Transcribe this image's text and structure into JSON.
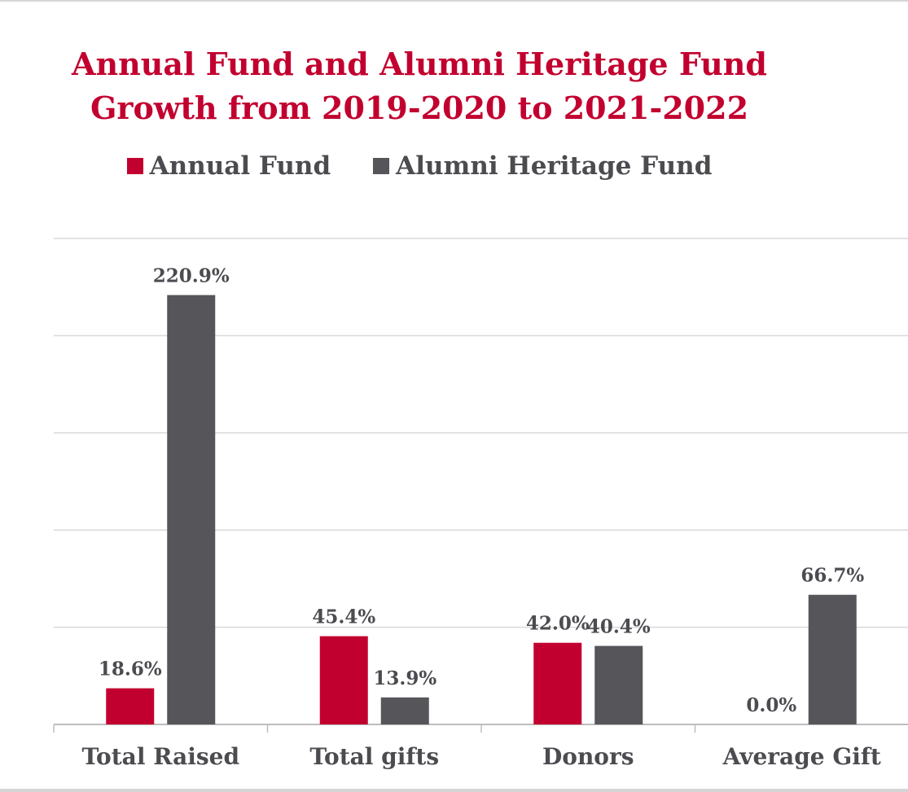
{
  "chart_data": {
    "type": "bar",
    "title": [
      "Annual Fund and Alumni Heritage Fund",
      "Growth from 2019-2020 to 2021-2022"
    ],
    "categories": [
      "Total Raised",
      "Total gifts",
      "Donors",
      "Average Gift"
    ],
    "series": [
      {
        "name": "Annual Fund",
        "color": "#c2002f",
        "values": [
          18.6,
          45.4,
          42.0,
          0.0
        ],
        "labels": [
          "18.6%",
          "45.4%",
          "42.0%",
          "0.0%"
        ]
      },
      {
        "name": "Alumni Heritage Fund",
        "color": "#55555a",
        "values": [
          220.9,
          13.9,
          40.4,
          66.7
        ],
        "labels": [
          "220.9%",
          "13.9%",
          "40.4%",
          "66.7%"
        ]
      }
    ],
    "ylim": [
      0,
      250
    ],
    "y_gridlines": [
      0,
      50,
      100,
      150,
      200,
      250
    ],
    "grid": true,
    "legend_position": "top",
    "xlabel": "",
    "ylabel": ""
  }
}
